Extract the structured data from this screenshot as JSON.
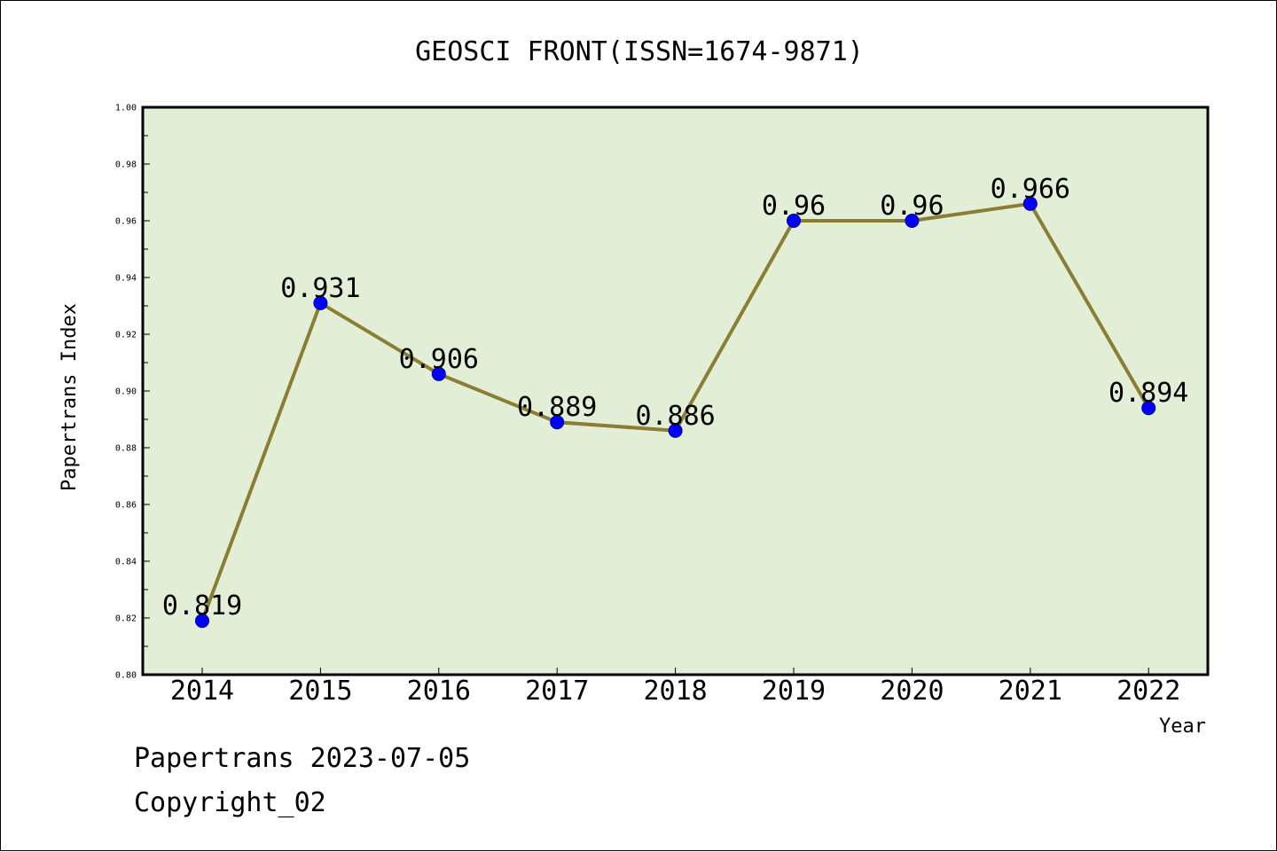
{
  "chart_data": {
    "type": "line",
    "title": "GEOSCI FRONT(ISSN=1674-9871)",
    "xlabel": "Year",
    "ylabel": "Papertrans Index",
    "categories": [
      "2014",
      "2015",
      "2016",
      "2017",
      "2018",
      "2019",
      "2020",
      "2021",
      "2022"
    ],
    "values": [
      0.819,
      0.931,
      0.906,
      0.889,
      0.886,
      0.96,
      0.96,
      0.966,
      0.894
    ],
    "data_labels": [
      "0.819",
      "0.931",
      "0.906",
      "0.889",
      "0.886",
      "0.96",
      "0.96",
      "0.966",
      "0.894"
    ],
    "ylim": [
      0.8,
      1.0
    ],
    "yticks": [
      "0.80",
      "0.82",
      "0.84",
      "0.86",
      "0.88",
      "0.90",
      "0.92",
      "0.94",
      "0.96",
      "0.98",
      "1.00"
    ],
    "colors": {
      "plot_background": "#e2efd6",
      "line": "#8b7d34",
      "marker": "#0000ff"
    },
    "grid": false,
    "legend": "none"
  },
  "footer": {
    "line1": "Papertrans 2023-07-05",
    "line2": "Copyright_02"
  }
}
